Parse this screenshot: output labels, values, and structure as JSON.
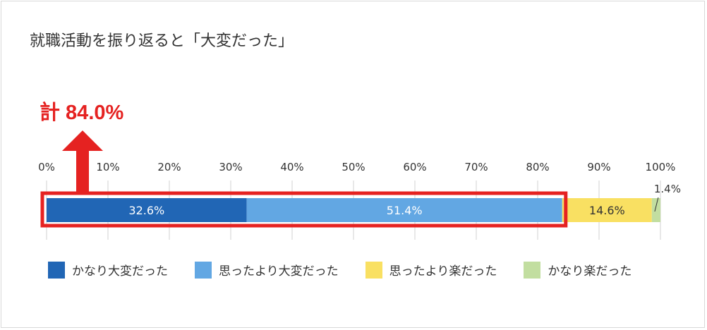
{
  "chart_data": {
    "type": "bar",
    "orientation": "horizontal-stacked",
    "title": "就職活動を振り返ると「大変だった」",
    "annotation": "計 84.0%",
    "xlim": [
      0,
      100
    ],
    "ticks": [
      "0%",
      "10%",
      "20%",
      "30%",
      "40%",
      "50%",
      "60%",
      "70%",
      "80%",
      "90%",
      "100%"
    ],
    "grid": true,
    "legend_position": "bottom",
    "series": [
      {
        "name": "かなり大変だった",
        "value": 32.6,
        "label": "32.6%",
        "color": "#2166b5",
        "text_color": "#ffffff"
      },
      {
        "name": "思ったより大変だった",
        "value": 51.4,
        "label": "51.4%",
        "color": "#62a7e3",
        "text_color": "#ffffff"
      },
      {
        "name": "思ったより楽だった",
        "value": 14.6,
        "label": "14.6%",
        "color": "#f9e062",
        "text_color": "#333333"
      },
      {
        "name": "かなり楽だった",
        "value": 1.4,
        "label": "1.4%",
        "color": "#c2dea0",
        "text_color": "#333333"
      }
    ],
    "highlight_color": "#e52221"
  }
}
